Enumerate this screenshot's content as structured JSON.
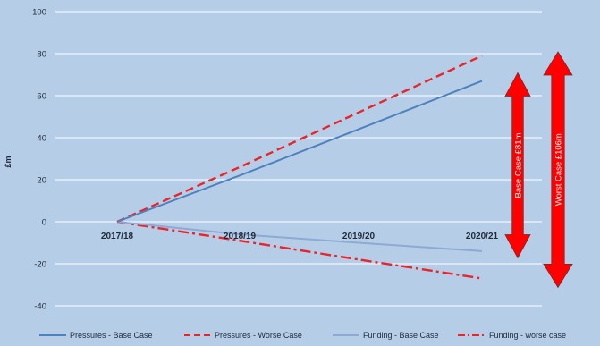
{
  "chart_data": {
    "type": "line",
    "categories": [
      "2017/18",
      "2018/19",
      "2019/20",
      "2020/21"
    ],
    "ylabel": "£m",
    "xlabel": "",
    "ylim": [
      -40,
      100
    ],
    "yticks": [
      "100",
      "80",
      "60",
      "40",
      "20",
      "0",
      "-20",
      "-40"
    ],
    "grid": true,
    "legend_position": "bottom",
    "series": [
      {
        "name": "Pressures - Base Case",
        "values": [
          0,
          22,
          44,
          67
        ],
        "color": "#4f81bd",
        "dash": "solid"
      },
      {
        "name": "Pressures - Worse Case",
        "values": [
          0,
          26,
          52,
          79
        ],
        "color": "#e8252a",
        "dash": "dash"
      },
      {
        "name": "Funding - Base Case",
        "values": [
          0,
          -6,
          -10,
          -14
        ],
        "color": "#8eaad4",
        "dash": "solid"
      },
      {
        "name": "Funding - worse case",
        "values": [
          0,
          -9,
          -18,
          -27
        ],
        "color": "#e8252a",
        "dash": "dashdot"
      }
    ],
    "annotations": [
      {
        "label": "Base Case £81m",
        "from": -13,
        "to": 70,
        "color": "#ff0000"
      },
      {
        "label": "Worst Case £106m",
        "from": -27,
        "to": 80,
        "color": "#ff0000"
      }
    ]
  }
}
